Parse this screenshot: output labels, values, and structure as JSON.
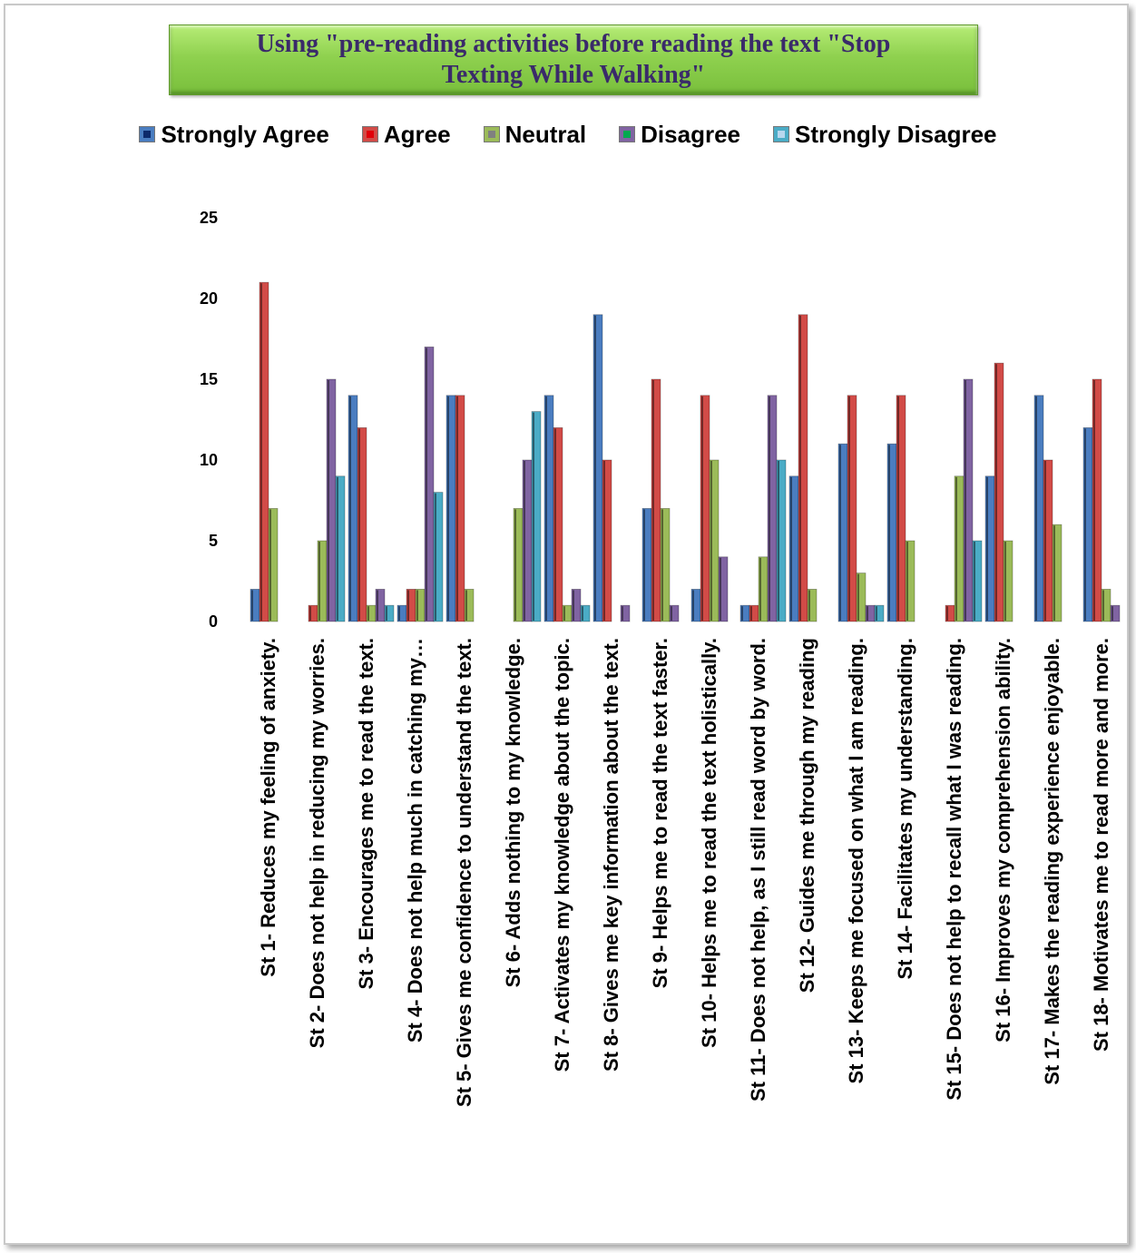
{
  "chart_data": {
    "type": "bar",
    "title": "Using \"pre-reading activities before reading the text \"Stop Texting While Walking\"",
    "title_line1": "Using \"pre-reading activities before reading the text \"Stop",
    "title_line2": "Texting While Walking\"",
    "xlabel": "",
    "ylabel": "",
    "ylim": [
      0,
      25
    ],
    "yticks": [
      0,
      5,
      10,
      15,
      20,
      25
    ],
    "grid": false,
    "legend_position": "top",
    "categories": [
      "St 1- Reduces my feeling of anxiety.",
      "St 2- Does not help in reducing my worries.",
      "St 3- Encourages me to read the text.",
      "St 4- Does not help much in catching my…",
      "St 5- Gives me confidence to understand the text.",
      "St 6- Adds nothing to my knowledge.",
      "St 7- Activates my knowledge about the topic.",
      "St 8- Gives me key information about the text.",
      "St 9- Helps me to read the text faster.",
      "St 10- Helps me to read the text holistically.",
      "St 11- Does not help, as I still read word by word.",
      "St 12- Guides me through my reading",
      "St 13- Keeps me focused on what I am reading.",
      "St 14- Facilitates my understanding.",
      "St 15- Does not help to recall what I was reading.",
      "St 16- Improves my comprehension ability.",
      "St 17- Makes the reading experience enjoyable.",
      "St 18- Motivates me to read more and more."
    ],
    "series": [
      {
        "name": "Strongly Agree",
        "color": "#4a7dc0",
        "swatch_inner": "#0d2a6b",
        "values": [
          2,
          0,
          14,
          1,
          14,
          0,
          14,
          19,
          7,
          2,
          1,
          9,
          11,
          11,
          0,
          9,
          14,
          12
        ]
      },
      {
        "name": "Agree",
        "color": "#d24b47",
        "swatch_inner": "#e0000a",
        "values": [
          21,
          1,
          12,
          2,
          14,
          0,
          12,
          10,
          15,
          14,
          1,
          19,
          14,
          14,
          1,
          16,
          10,
          15
        ]
      },
      {
        "name": "Neutral",
        "color": "#9bbb59",
        "swatch_inner": "#808080",
        "values": [
          7,
          5,
          1,
          2,
          2,
          7,
          1,
          0,
          7,
          10,
          4,
          2,
          3,
          5,
          9,
          5,
          6,
          2
        ]
      },
      {
        "name": "Disagree",
        "color": "#8064a2",
        "swatch_inner": "#00a84f",
        "values": [
          0,
          15,
          2,
          17,
          0,
          10,
          2,
          1,
          1,
          4,
          14,
          0,
          1,
          0,
          15,
          0,
          0,
          1
        ]
      },
      {
        "name": "Strongly Disagree",
        "color": "#4bacc6",
        "swatch_inner": "#b8d7ee",
        "values": [
          0,
          9,
          1,
          8,
          0,
          13,
          1,
          0,
          0,
          0,
          10,
          0,
          1,
          0,
          5,
          0,
          0,
          0
        ]
      }
    ]
  }
}
